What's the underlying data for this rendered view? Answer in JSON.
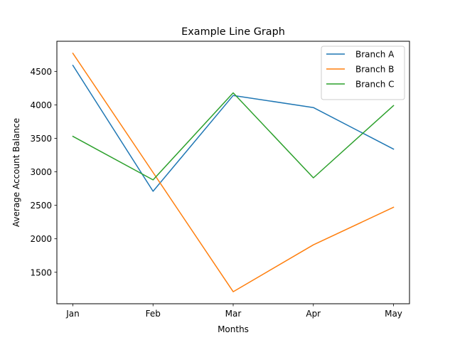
{
  "chart_data": {
    "type": "line",
    "title": "Example Line Graph",
    "xlabel": "Months",
    "ylabel": "Average Account Balance",
    "categories": [
      "Jan",
      "Feb",
      "Mar",
      "Apr",
      "May"
    ],
    "series": [
      {
        "name": "Branch A",
        "color": "#1f77b4",
        "values": [
          4590,
          2710,
          4140,
          3960,
          3340
        ]
      },
      {
        "name": "Branch B",
        "color": "#ff7f0e",
        "values": [
          4770,
          2990,
          1210,
          1910,
          2470
        ]
      },
      {
        "name": "Branch C",
        "color": "#2ca02c",
        "values": [
          3530,
          2880,
          4180,
          2910,
          3990
        ]
      }
    ],
    "yticks": [
      1500,
      2000,
      2500,
      3000,
      3500,
      4000,
      4500
    ],
    "ylim": [
      1030,
      4950
    ],
    "grid": false,
    "legend_position": "top-right"
  }
}
